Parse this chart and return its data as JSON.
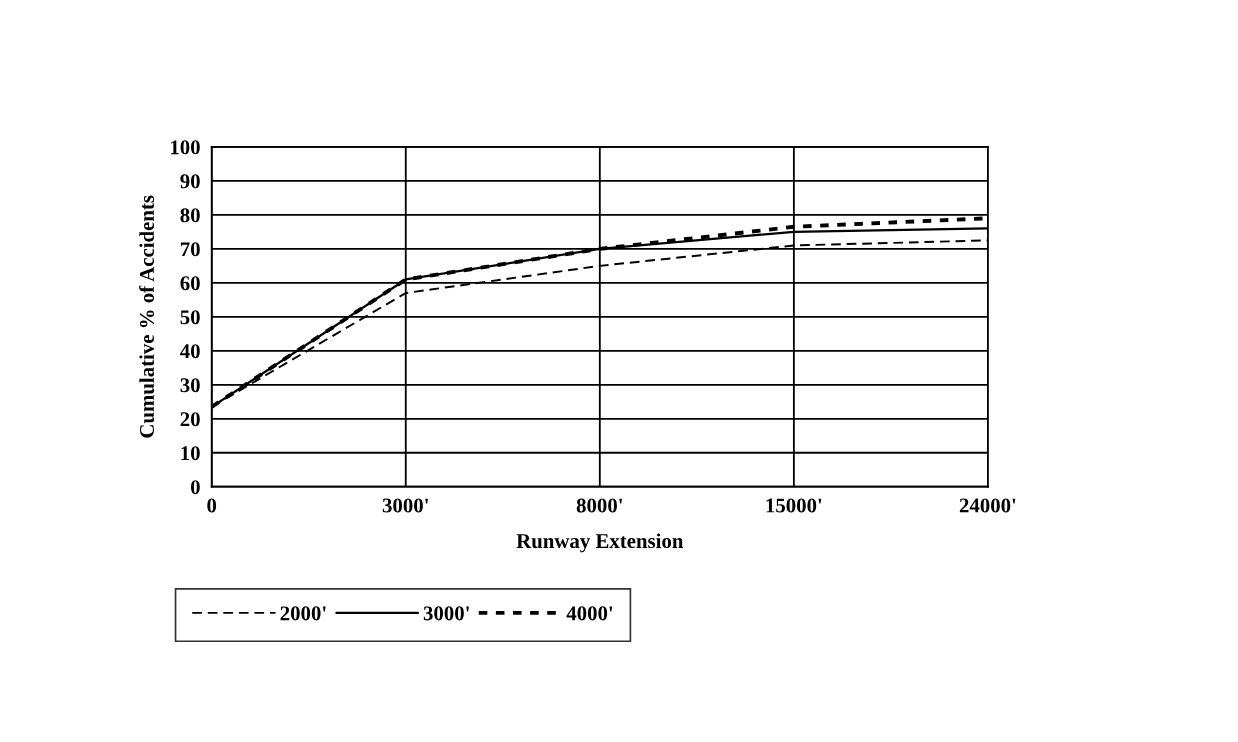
{
  "chart_data": {
    "type": "line",
    "xlabel": "Runway Extension",
    "ylabel": "Cumulative % of Accidents",
    "categories": [
      "0",
      "3000'",
      "8000'",
      "15000'",
      "24000'"
    ],
    "series": [
      {
        "name": "2000'",
        "color": "#000000",
        "line_style": "dashed",
        "values": [
          23.5,
          57,
          65,
          71,
          72.5
        ]
      },
      {
        "name": "3000'",
        "color": "#000000",
        "line_style": "solid",
        "values": [
          23.5,
          61,
          70,
          75,
          76
        ]
      },
      {
        "name": "4000'",
        "color": "#000000",
        "line_style": "dotted",
        "values": [
          23.5,
          61,
          70,
          76.5,
          79
        ]
      }
    ],
    "ylim": [
      0,
      100
    ],
    "yticks": [
      0,
      10,
      20,
      30,
      40,
      50,
      60,
      70,
      80,
      90,
      100
    ],
    "grid": true,
    "legend": "bottom left",
    "marker": "none"
  }
}
